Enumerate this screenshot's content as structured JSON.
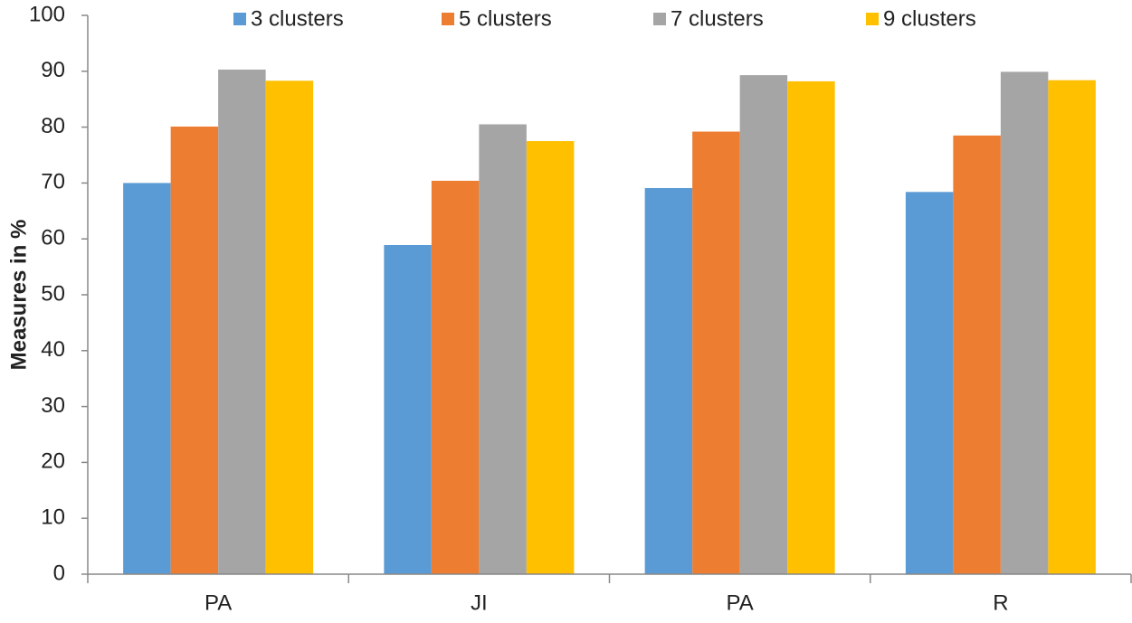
{
  "chart_data": {
    "type": "bar",
    "y_label": "Measures  in %",
    "categories": [
      "PA",
      "JI",
      "PA",
      "R"
    ],
    "series": [
      {
        "name": "3 clusters",
        "color": "#5b9bd5",
        "values": [
          70.0,
          58.9,
          69.1,
          68.4
        ]
      },
      {
        "name": "5 clusters",
        "color": "#ed7d31",
        "values": [
          80.1,
          70.4,
          79.2,
          78.5
        ]
      },
      {
        "name": "7 clusters",
        "color": "#a5a5a5",
        "values": [
          90.3,
          80.5,
          89.3,
          89.9
        ]
      },
      {
        "name": "9 clusters",
        "color": "#ffc000",
        "values": [
          88.3,
          77.5,
          88.2,
          88.4
        ]
      }
    ],
    "ylim": [
      0,
      100
    ],
    "yticks": [
      0,
      10,
      20,
      30,
      40,
      50,
      60,
      70,
      80,
      90,
      100
    ],
    "grid": false
  }
}
